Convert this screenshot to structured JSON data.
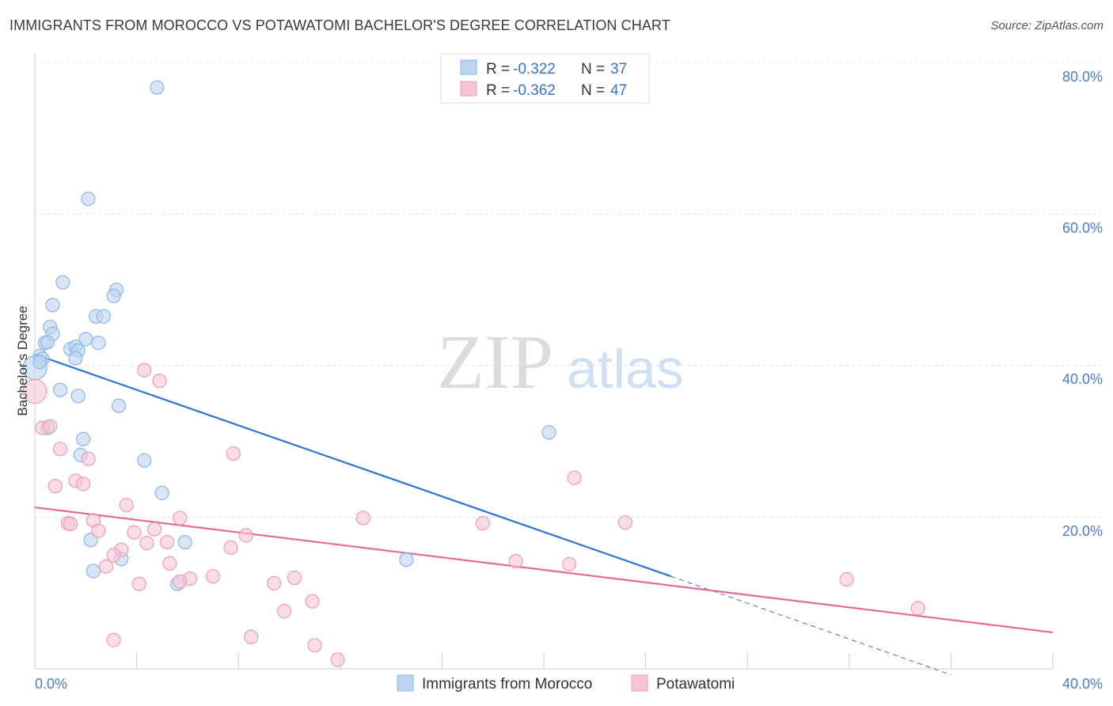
{
  "chart_data": {
    "type": "scatter",
    "title": "IMMIGRANTS FROM MOROCCO VS POTAWATOMI BACHELOR'S DEGREE CORRELATION CHART",
    "source": "Source: ZipAtlas.com",
    "ylabel": "Bachelor's Degree",
    "xlim": [
      0,
      40
    ],
    "ylim": [
      0,
      80
    ],
    "x_tick_labels": [
      "0.0%",
      "40.0%"
    ],
    "y_ticks": [
      20,
      40,
      60,
      80
    ],
    "y_tick_labels": [
      "20.0%",
      "40.0%",
      "60.0%",
      "80.0%"
    ],
    "watermark": {
      "part1": "ZIP",
      "part2": "atlas"
    },
    "legend": {
      "rows": [
        {
          "r_label": "R = ",
          "r_value": "-0.322",
          "n_label": "N = ",
          "n_value": "37"
        },
        {
          "r_label": "R = ",
          "r_value": "-0.362",
          "n_label": "N = ",
          "n_value": "47"
        }
      ]
    },
    "series": [
      {
        "name": "Immigrants from Morocco",
        "color": "#8fb4e6",
        "fill": "#bcd3f2",
        "line_color": "#2f72d0",
        "trend": {
          "x0": 0,
          "y0": 41.5,
          "x1": 25,
          "y1": 12.2,
          "dash_to_x": 36,
          "dash_to_y": -0.8
        },
        "points": [
          [
            4.8,
            76.7
          ],
          [
            2.1,
            62.0
          ],
          [
            1.1,
            51.0
          ],
          [
            3.2,
            50.0
          ],
          [
            3.1,
            49.2
          ],
          [
            0.7,
            48.0
          ],
          [
            2.4,
            46.5
          ],
          [
            2.7,
            46.5
          ],
          [
            0.6,
            45.1
          ],
          [
            0.7,
            44.2
          ],
          [
            0.4,
            43.0
          ],
          [
            0.5,
            43.1
          ],
          [
            2.0,
            43.5
          ],
          [
            2.5,
            43.0
          ],
          [
            1.4,
            42.2
          ],
          [
            1.6,
            42.5
          ],
          [
            1.7,
            42.0
          ],
          [
            1.6,
            41.0
          ],
          [
            0.2,
            41.3
          ],
          [
            0.3,
            40.9
          ],
          [
            0.0,
            39.7
          ],
          [
            1.0,
            36.8
          ],
          [
            1.7,
            36.0
          ],
          [
            3.3,
            34.7
          ],
          [
            0.5,
            31.8
          ],
          [
            1.9,
            30.3
          ],
          [
            1.8,
            28.2
          ],
          [
            4.3,
            27.5
          ],
          [
            20.2,
            31.2
          ],
          [
            5.0,
            23.2
          ],
          [
            2.2,
            17.0
          ],
          [
            5.9,
            16.7
          ],
          [
            3.4,
            14.5
          ],
          [
            14.6,
            14.4
          ],
          [
            2.3,
            12.9
          ],
          [
            5.6,
            11.2
          ],
          [
            0.2,
            40.5
          ]
        ]
      },
      {
        "name": "Potawatomi",
        "color": "#ef9ab4",
        "fill": "#f7c6d6",
        "line_color": "#e8689a",
        "trend": {
          "x0": 0,
          "y0": 21.3,
          "x1": 40,
          "y1": 4.8
        },
        "points": [
          [
            0.0,
            36.6
          ],
          [
            4.3,
            39.4
          ],
          [
            4.9,
            38.0
          ],
          [
            0.3,
            31.8
          ],
          [
            0.6,
            32.0
          ],
          [
            1.0,
            29.0
          ],
          [
            7.8,
            28.4
          ],
          [
            2.1,
            27.7
          ],
          [
            21.2,
            25.2
          ],
          [
            1.6,
            24.8
          ],
          [
            1.9,
            24.4
          ],
          [
            0.8,
            24.1
          ],
          [
            3.6,
            21.6
          ],
          [
            5.7,
            19.9
          ],
          [
            12.9,
            19.9
          ],
          [
            2.3,
            19.6
          ],
          [
            17.6,
            19.2
          ],
          [
            23.2,
            19.3
          ],
          [
            1.3,
            19.2
          ],
          [
            1.4,
            19.1
          ],
          [
            4.7,
            18.4
          ],
          [
            3.9,
            18.0
          ],
          [
            2.5,
            18.2
          ],
          [
            8.3,
            17.6
          ],
          [
            5.2,
            16.7
          ],
          [
            4.4,
            16.6
          ],
          [
            7.7,
            16.0
          ],
          [
            3.4,
            15.7
          ],
          [
            3.1,
            15.0
          ],
          [
            18.9,
            14.2
          ],
          [
            21.0,
            13.8
          ],
          [
            5.3,
            13.9
          ],
          [
            2.8,
            13.5
          ],
          [
            7.0,
            12.2
          ],
          [
            10.2,
            12.0
          ],
          [
            6.1,
            11.9
          ],
          [
            5.7,
            11.5
          ],
          [
            4.1,
            11.2
          ],
          [
            9.4,
            11.3
          ],
          [
            31.9,
            11.8
          ],
          [
            10.9,
            8.9
          ],
          [
            9.8,
            7.6
          ],
          [
            34.7,
            8.0
          ],
          [
            8.5,
            4.2
          ],
          [
            3.1,
            3.8
          ],
          [
            11.0,
            3.1
          ],
          [
            11.9,
            1.2
          ]
        ]
      }
    ]
  }
}
